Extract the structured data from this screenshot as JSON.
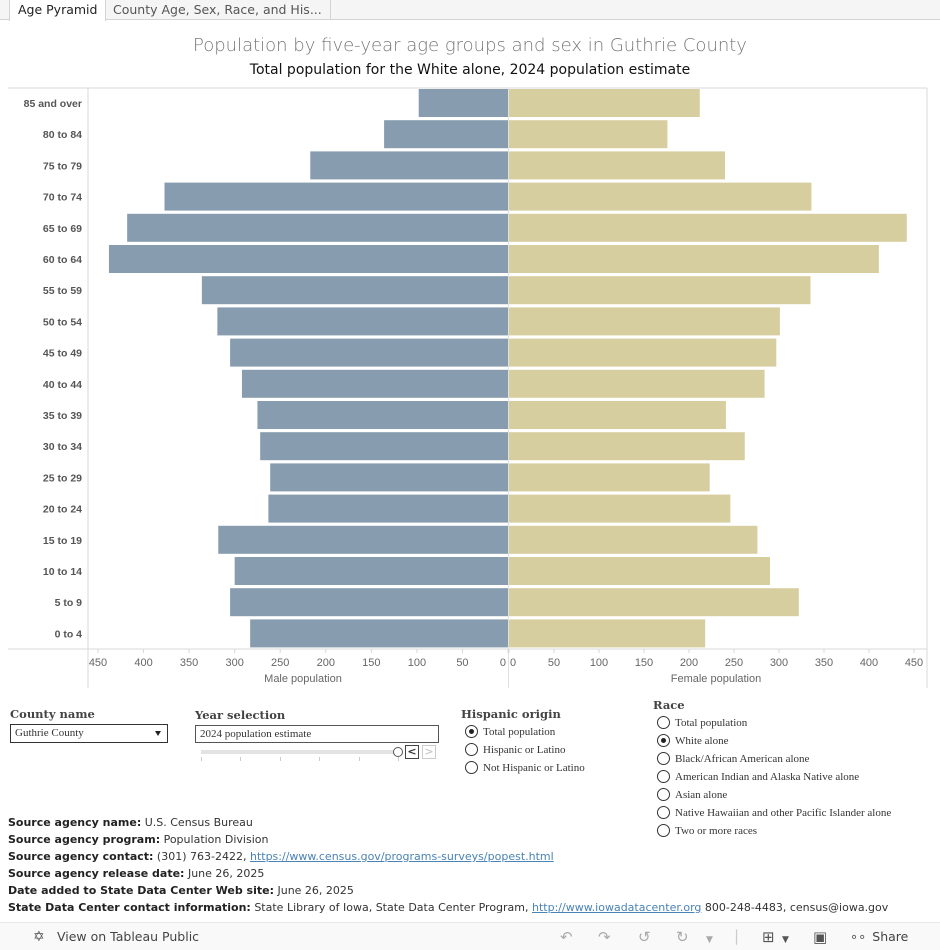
{
  "tabs": [
    {
      "label": "Age Pyramid",
      "active": true
    },
    {
      "label": "County Age, Sex, Race, and His...",
      "active": false
    }
  ],
  "chart_data": {
    "type": "bar",
    "subtype": "population-pyramid",
    "title": "Population by five-year age groups and sex in Guthrie County",
    "subtitle": "Total population for the White alone, 2024 population estimate",
    "categories": [
      "85 and over",
      "80 to 84",
      "75 to 79",
      "70 to 74",
      "65 to 69",
      "60 to 64",
      "55 to 59",
      "50 to 54",
      "45 to 49",
      "40 to 44",
      "35 to 39",
      "30 to 34",
      "25 to 29",
      "20 to 24",
      "15 to 19",
      "10 to 14",
      "5 to 9",
      "0 to 4"
    ],
    "series": [
      {
        "name": "Male population",
        "color": "#879caf",
        "values": [
          98,
          136,
          217,
          377,
          418,
          438,
          336,
          319,
          305,
          292,
          275,
          272,
          261,
          263,
          318,
          300,
          305,
          283
        ]
      },
      {
        "name": "Female population",
        "color": "#d7ce9f",
        "values": [
          212,
          176,
          240,
          336,
          442,
          411,
          335,
          301,
          297,
          284,
          241,
          262,
          223,
          246,
          276,
          290,
          322,
          218
        ]
      }
    ],
    "male_axis": {
      "label": "Male population",
      "ticks": [
        450,
        400,
        350,
        300,
        250,
        200,
        150,
        100,
        50,
        0
      ],
      "range": [
        0,
        450
      ],
      "reversed": true
    },
    "female_axis": {
      "label": "Female population",
      "ticks": [
        0,
        50,
        100,
        150,
        200,
        250,
        300,
        350,
        400,
        450
      ],
      "range": [
        0,
        450
      ]
    },
    "grid": false,
    "legend": "none"
  },
  "filters": {
    "county": {
      "label": "County name",
      "value": "Guthrie County"
    },
    "year": {
      "label": "Year selection",
      "value": "2024 population estimate",
      "slider_position": 5,
      "slider_steps": 6,
      "prev_label": "<",
      "next_label": ">"
    },
    "hispanic": {
      "label": "Hispanic origin",
      "options": [
        {
          "label": "Total population",
          "selected": true
        },
        {
          "label": "Hispanic or Latino",
          "selected": false
        },
        {
          "label": "Not Hispanic or Latino",
          "selected": false
        }
      ]
    },
    "race": {
      "label": "Race",
      "options": [
        {
          "label": "Total population",
          "selected": false
        },
        {
          "label": "White alone",
          "selected": true
        },
        {
          "label": "Black/African American alone",
          "selected": false
        },
        {
          "label": "American Indian and Alaska Native alone",
          "selected": false
        },
        {
          "label": "Asian alone",
          "selected": false
        },
        {
          "label": "Native Hawaiian and other Pacific Islander alone",
          "selected": false
        },
        {
          "label": "Two or more races",
          "selected": false
        }
      ]
    }
  },
  "notes": {
    "agency_name_key": "Source agency name:",
    "agency_name_val": " U.S. Census Bureau",
    "program_key": "Source agency program:",
    "program_val": " Population Division",
    "contact_key": "Source agency contact:",
    "contact_val": " (301) 763-2422, ",
    "contact_link": "https://www.census.gov/programs-surveys/popest.html",
    "release_key": "Source agency release date:",
    "release_val": " June 26, 2025",
    "added_key": "Date added to State Data Center Web site:",
    "added_val": " June 26, 2025",
    "sdc_key": "State Data Center contact information:",
    "sdc_val": " State Library of Iowa, State Data Center Program, ",
    "sdc_link": "http://www.iowadatacenter.org",
    "sdc_tail": " 800-248-4483, census@iowa.gov"
  },
  "footer": {
    "view_label": "View on Tableau Public",
    "share_label": "Share"
  }
}
